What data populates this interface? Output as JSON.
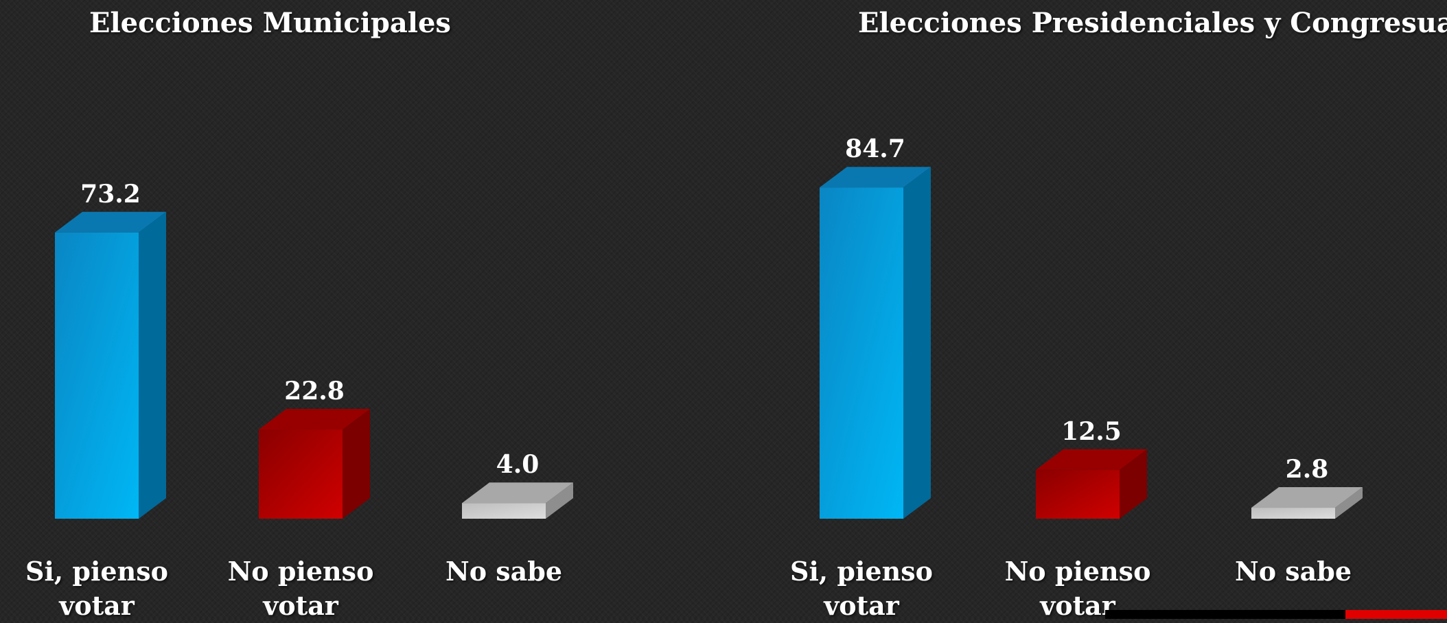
{
  "chart_data": [
    {
      "type": "bar",
      "title": "Elecciones Municipales",
      "categories": [
        "Si, pienso votar",
        "No pienso votar",
        "No sabe"
      ],
      "values": [
        73.2,
        22.8,
        4.0
      ],
      "value_labels": [
        "73.2",
        "22.8",
        "4.0"
      ],
      "colors": [
        "#00a2e0",
        "#c00000",
        "#c8c8c8"
      ],
      "ylim": [
        0,
        100
      ],
      "grid": false,
      "legend": "none"
    },
    {
      "type": "bar",
      "title": "Elecciones Presidenciales y Congresuales",
      "categories": [
        "Si, pienso votar",
        "No pienso votar",
        "No sabe"
      ],
      "values": [
        84.7,
        12.5,
        2.8
      ],
      "value_labels": [
        "84.7",
        "12.5",
        "2.8"
      ],
      "colors": [
        "#00a2e0",
        "#c00000",
        "#c8c8c8"
      ],
      "ylim": [
        0,
        100
      ],
      "grid": false,
      "legend": "none"
    }
  ]
}
